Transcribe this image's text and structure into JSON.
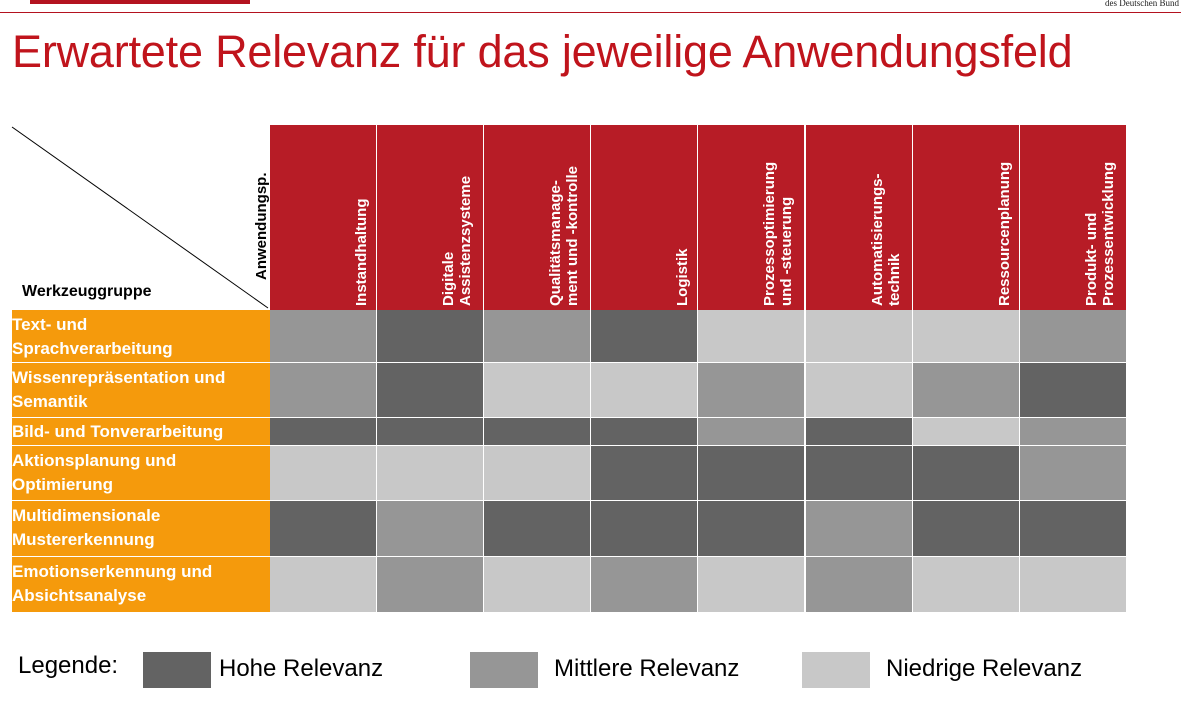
{
  "header": {
    "org_text": "des Deutschen Bund",
    "title": "Erwartete Relevanz für das jeweilige Anwendungsfeld"
  },
  "matrix": {
    "corner_top_label": "Anwendungsp.",
    "corner_left_label": "Werkzeuggruppe",
    "columns": [
      {
        "id": "instandhaltung",
        "lines": [
          "Instandhaltung"
        ]
      },
      {
        "id": "digitale-assistenzsysteme",
        "lines": [
          "Digitale",
          "Assistenzsysteme"
        ]
      },
      {
        "id": "qualitaetsmanagement",
        "lines": [
          "Qualitätsmanage-",
          "ment und -kontrolle"
        ]
      },
      {
        "id": "logistik",
        "lines": [
          "Logistik"
        ]
      },
      {
        "id": "prozessoptimierung",
        "lines": [
          "Prozessoptimierung",
          "und -steuerung"
        ]
      },
      {
        "id": "automatisierungstechnik",
        "lines": [
          "Automatisierungs-",
          "technik"
        ]
      },
      {
        "id": "ressourcenplanung",
        "lines": [
          "Ressourcenplanung"
        ]
      },
      {
        "id": "produktentwicklung",
        "lines": [
          "Produkt- und",
          "Prozessentwicklung"
        ]
      }
    ],
    "rows": [
      {
        "id": "text-sprachverarbeitung",
        "lines": [
          "Text- und",
          "Sprachverarbeitung"
        ],
        "values": [
          "mittel",
          "hoch",
          "mittel",
          "hoch",
          "niedrig",
          "niedrig",
          "niedrig",
          "mittel"
        ]
      },
      {
        "id": "wissensrepraesentation",
        "lines": [
          "Wissenrepräsentation und",
          "Semantik"
        ],
        "values": [
          "mittel",
          "hoch",
          "niedrig",
          "niedrig",
          "mittel",
          "niedrig",
          "mittel",
          "hoch"
        ]
      },
      {
        "id": "bild-tonverarbeitung",
        "lines": [
          "Bild- und Tonverarbeitung"
        ],
        "values": [
          "hoch",
          "hoch",
          "hoch",
          "hoch",
          "mittel",
          "hoch",
          "niedrig",
          "mittel"
        ]
      },
      {
        "id": "aktionsplanung",
        "lines": [
          "Aktionsplanung und",
          "Optimierung"
        ],
        "values": [
          "niedrig",
          "niedrig",
          "niedrig",
          "hoch",
          "hoch",
          "hoch",
          "hoch",
          "mittel"
        ]
      },
      {
        "id": "mustererkennung",
        "lines": [
          "Multidimensionale",
          "Mustererkennung"
        ],
        "values": [
          "hoch",
          "mittel",
          "hoch",
          "hoch",
          "hoch",
          "mittel",
          "hoch",
          "hoch"
        ]
      },
      {
        "id": "emotionserkennung",
        "lines": [
          "Emotionserkennung und",
          "Absichtsanalyse"
        ],
        "values": [
          "niedrig",
          "mittel",
          "niedrig",
          "mittel",
          "niedrig",
          "mittel",
          "niedrig",
          "niedrig"
        ]
      }
    ]
  },
  "legend": {
    "label": "Legende:",
    "items": [
      {
        "level": "hoch",
        "text": "Hohe Relevanz",
        "color": "#636363"
      },
      {
        "level": "mittel",
        "text": "Mittlere Relevanz",
        "color": "#969696"
      },
      {
        "level": "niedrig",
        "text": "Niedrige Relevanz",
        "color": "#c8c8c8"
      }
    ]
  },
  "colors": {
    "title": "#c0141c",
    "column_header": "#b71c26",
    "row_header": "#f59a0c"
  }
}
